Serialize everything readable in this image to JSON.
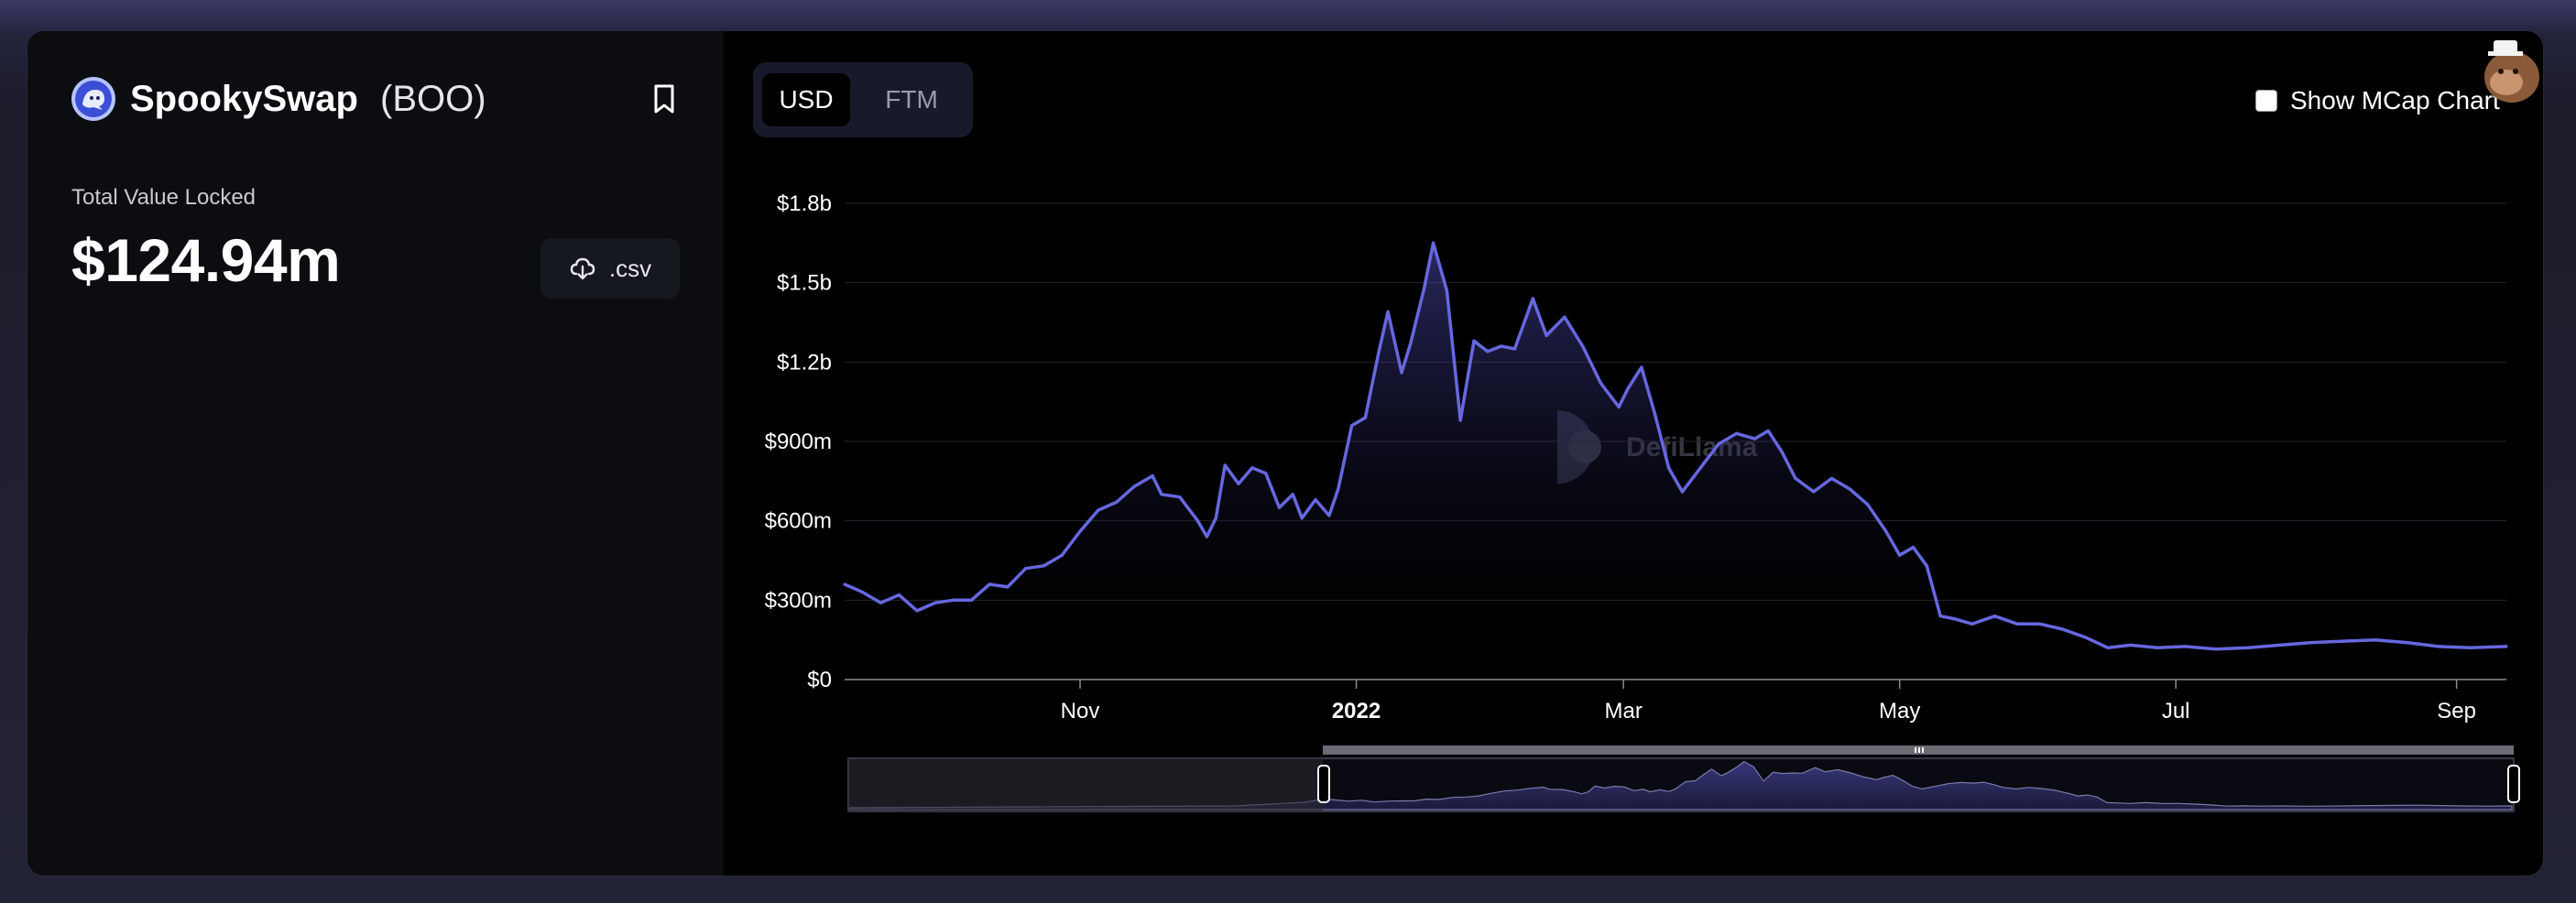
{
  "protocol": {
    "name": "SpookySwap",
    "symbol": "(BOO)",
    "tvl_label": "Total Value Locked",
    "tvl_value": "$124.94m",
    "csv_label": ".csv",
    "logo_icon": "spooky-ghost-logo-icon",
    "bookmark_icon": "bookmark-icon",
    "download_icon": "cloud-download-icon"
  },
  "currency_toggle": {
    "options": [
      "USD",
      "FTM"
    ],
    "selected": "USD"
  },
  "mcap_toggle": {
    "label": "Show MCap Chart",
    "checked": false
  },
  "watermark": "DefiLlama",
  "colors": {
    "line": "#6767e0",
    "accent": "#5c5cf0",
    "card": "#000000",
    "panel": "#0b0d10"
  },
  "chart_data": {
    "type": "area",
    "title": "",
    "xlabel": "",
    "ylabel": "",
    "ylim": [
      0,
      1800000000
    ],
    "y_ticks": [
      {
        "value": 0,
        "label": "$0"
      },
      {
        "value": 300000000,
        "label": "$300m"
      },
      {
        "value": 600000000,
        "label": "$600m"
      },
      {
        "value": 900000000,
        "label": "$900m"
      },
      {
        "value": 1200000000,
        "label": "$1.2b"
      },
      {
        "value": 1500000000,
        "label": "$1.5b"
      },
      {
        "value": 1800000000,
        "label": "$1.8b"
      }
    ],
    "x_ticks": [
      {
        "date": "2021-11-01",
        "label": "Nov",
        "bold": false
      },
      {
        "date": "2022-01-01",
        "label": "2022",
        "bold": true
      },
      {
        "date": "2022-03-01",
        "label": "Mar",
        "bold": false
      },
      {
        "date": "2022-05-01",
        "label": "May",
        "bold": false
      },
      {
        "date": "2022-07-01",
        "label": "Jul",
        "bold": false
      },
      {
        "date": "2022-09-01",
        "label": "Sep",
        "bold": false
      }
    ],
    "x_range": [
      "2021-09-10",
      "2022-09-12"
    ],
    "grid": true,
    "series": [
      {
        "values": [
          [
            "2021-09-10",
            360000000
          ],
          [
            "2021-09-14",
            330000000
          ],
          [
            "2021-09-18",
            290000000
          ],
          [
            "2021-09-22",
            320000000
          ],
          [
            "2021-09-26",
            260000000
          ],
          [
            "2021-09-30",
            290000000
          ],
          [
            "2021-10-04",
            300000000
          ],
          [
            "2021-10-08",
            300000000
          ],
          [
            "2021-10-12",
            360000000
          ],
          [
            "2021-10-16",
            350000000
          ],
          [
            "2021-10-20",
            420000000
          ],
          [
            "2021-10-24",
            430000000
          ],
          [
            "2021-10-28",
            470000000
          ],
          [
            "2021-11-01",
            560000000
          ],
          [
            "2021-11-05",
            640000000
          ],
          [
            "2021-11-09",
            670000000
          ],
          [
            "2021-11-13",
            730000000
          ],
          [
            "2021-11-17",
            770000000
          ],
          [
            "2021-11-19",
            700000000
          ],
          [
            "2021-11-23",
            690000000
          ],
          [
            "2021-11-27",
            600000000
          ],
          [
            "2021-11-29",
            540000000
          ],
          [
            "2021-12-01",
            610000000
          ],
          [
            "2021-12-03",
            810000000
          ],
          [
            "2021-12-06",
            740000000
          ],
          [
            "2021-12-09",
            800000000
          ],
          [
            "2021-12-12",
            780000000
          ],
          [
            "2021-12-15",
            650000000
          ],
          [
            "2021-12-18",
            700000000
          ],
          [
            "2021-12-20",
            610000000
          ],
          [
            "2021-12-23",
            680000000
          ],
          [
            "2021-12-26",
            620000000
          ],
          [
            "2021-12-28",
            720000000
          ],
          [
            "2021-12-31",
            960000000
          ],
          [
            "2022-01-03",
            990000000
          ],
          [
            "2022-01-06",
            1240000000
          ],
          [
            "2022-01-08",
            1390000000
          ],
          [
            "2022-01-11",
            1160000000
          ],
          [
            "2022-01-13",
            1270000000
          ],
          [
            "2022-01-16",
            1480000000
          ],
          [
            "2022-01-18",
            1650000000
          ],
          [
            "2022-01-21",
            1470000000
          ],
          [
            "2022-01-24",
            980000000
          ],
          [
            "2022-01-27",
            1280000000
          ],
          [
            "2022-01-30",
            1240000000
          ],
          [
            "2022-02-02",
            1260000000
          ],
          [
            "2022-02-05",
            1250000000
          ],
          [
            "2022-02-09",
            1440000000
          ],
          [
            "2022-02-12",
            1300000000
          ],
          [
            "2022-02-16",
            1370000000
          ],
          [
            "2022-02-20",
            1260000000
          ],
          [
            "2022-02-24",
            1120000000
          ],
          [
            "2022-02-28",
            1030000000
          ],
          [
            "2022-03-02",
            1100000000
          ],
          [
            "2022-03-05",
            1180000000
          ],
          [
            "2022-03-08",
            1000000000
          ],
          [
            "2022-03-11",
            800000000
          ],
          [
            "2022-03-14",
            710000000
          ],
          [
            "2022-03-18",
            800000000
          ],
          [
            "2022-03-22",
            890000000
          ],
          [
            "2022-03-26",
            930000000
          ],
          [
            "2022-03-30",
            910000000
          ],
          [
            "2022-04-02",
            940000000
          ],
          [
            "2022-04-05",
            860000000
          ],
          [
            "2022-04-08",
            760000000
          ],
          [
            "2022-04-12",
            710000000
          ],
          [
            "2022-04-16",
            760000000
          ],
          [
            "2022-04-20",
            720000000
          ],
          [
            "2022-04-24",
            660000000
          ],
          [
            "2022-04-28",
            560000000
          ],
          [
            "2022-05-01",
            470000000
          ],
          [
            "2022-05-04",
            500000000
          ],
          [
            "2022-05-07",
            430000000
          ],
          [
            "2022-05-10",
            240000000
          ],
          [
            "2022-05-13",
            230000000
          ],
          [
            "2022-05-17",
            210000000
          ],
          [
            "2022-05-22",
            240000000
          ],
          [
            "2022-05-27",
            210000000
          ],
          [
            "2022-06-01",
            210000000
          ],
          [
            "2022-06-06",
            190000000
          ],
          [
            "2022-06-11",
            160000000
          ],
          [
            "2022-06-16",
            120000000
          ],
          [
            "2022-06-21",
            130000000
          ],
          [
            "2022-06-27",
            120000000
          ],
          [
            "2022-07-03",
            125000000
          ],
          [
            "2022-07-10",
            115000000
          ],
          [
            "2022-07-17",
            120000000
          ],
          [
            "2022-07-24",
            130000000
          ],
          [
            "2022-07-31",
            140000000
          ],
          [
            "2022-08-07",
            145000000
          ],
          [
            "2022-08-14",
            150000000
          ],
          [
            "2022-08-21",
            140000000
          ],
          [
            "2022-08-28",
            125000000
          ],
          [
            "2022-09-04",
            120000000
          ],
          [
            "2022-09-12",
            125000000
          ]
        ]
      }
    ]
  }
}
